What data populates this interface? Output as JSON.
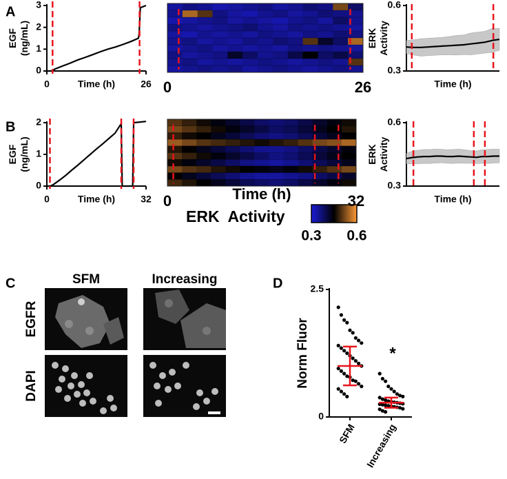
{
  "panel_labels": [
    "A",
    "B",
    "C",
    "D"
  ],
  "chart_data": [
    {
      "type": "line",
      "ylabel": [
        "EGF",
        "(ng/mL)"
      ],
      "xlabel": "Time (h)",
      "x": [
        0,
        1.5,
        2,
        4,
        6,
        8,
        10,
        12,
        14,
        16,
        18,
        20,
        22,
        24,
        24.2,
        24.5,
        26
      ],
      "values": [
        0,
        0,
        0.08,
        0.22,
        0.35,
        0.5,
        0.62,
        0.75,
        0.88,
        1.0,
        1.1,
        1.22,
        1.35,
        1.5,
        1.7,
        2.9,
        3.0
      ],
      "color": "#000000",
      "xlim": [
        0,
        26
      ],
      "ylim": [
        0,
        3
      ],
      "xticks": [
        0,
        26
      ],
      "yticks": [
        0,
        1,
        2,
        3
      ],
      "vlines": [
        1.5,
        24.3
      ],
      "vline_color": "#e8141c"
    },
    {
      "type": "heatmap",
      "xlim": [
        0,
        26
      ],
      "xticks": [
        0,
        26
      ],
      "vlines": [
        1.5,
        24.3
      ],
      "vline_color": "#e8141c",
      "rows": [
        [
          0.34,
          0.36,
          0.35,
          0.33,
          0.34,
          0.35,
          0.36,
          0.34,
          0.35,
          0.37,
          0.36,
          0.52,
          0.38
        ],
        [
          0.35,
          0.55,
          0.5,
          0.36,
          0.34,
          0.33,
          0.35,
          0.36,
          0.34,
          0.35,
          0.37,
          0.36,
          0.35
        ],
        [
          0.33,
          0.34,
          0.35,
          0.36,
          0.34,
          0.35,
          0.34,
          0.33,
          0.35,
          0.36,
          0.34,
          0.38,
          0.35
        ],
        [
          0.36,
          0.35,
          0.34,
          0.35,
          0.36,
          0.37,
          0.35,
          0.34,
          0.36,
          0.35,
          0.36,
          0.35,
          0.34
        ],
        [
          0.34,
          0.33,
          0.35,
          0.34,
          0.35,
          0.34,
          0.36,
          0.35,
          0.34,
          0.36,
          0.35,
          0.37,
          0.36
        ],
        [
          0.35,
          0.36,
          0.34,
          0.35,
          0.34,
          0.36,
          0.35,
          0.37,
          0.36,
          0.5,
          0.42,
          0.38,
          0.55
        ],
        [
          0.34,
          0.35,
          0.36,
          0.34,
          0.35,
          0.34,
          0.35,
          0.34,
          0.36,
          0.35,
          0.36,
          0.35,
          0.34
        ],
        [
          0.36,
          0.34,
          0.35,
          0.36,
          0.42,
          0.38,
          0.35,
          0.36,
          0.4,
          0.45,
          0.38,
          0.4,
          0.37
        ],
        [
          0.35,
          0.36,
          0.34,
          0.35,
          0.34,
          0.35,
          0.36,
          0.35,
          0.34,
          0.35,
          0.36,
          0.35,
          0.5
        ],
        [
          0.34,
          0.35,
          0.36,
          0.35,
          0.36,
          0.34,
          0.35,
          0.36,
          0.35,
          0.34,
          0.35,
          0.36,
          0.35
        ]
      ]
    },
    {
      "type": "band",
      "ylabel": [
        "ERK",
        "Activity"
      ],
      "xlabel": "Time (h)",
      "x": [
        0,
        2,
        4,
        6,
        8,
        10,
        12,
        14,
        16,
        18,
        20,
        22,
        24,
        26
      ],
      "values": [
        0.41,
        0.408,
        0.408,
        0.41,
        0.412,
        0.414,
        0.416,
        0.418,
        0.42,
        0.424,
        0.428,
        0.432,
        0.44,
        0.445
      ],
      "errors": [
        0.03,
        0.035,
        0.04,
        0.04,
        0.04,
        0.04,
        0.042,
        0.045,
        0.045,
        0.05,
        0.05,
        0.05,
        0.055,
        0.05
      ],
      "color": "#000000",
      "band_color": "#c8c8c8",
      "xlim": [
        0,
        26
      ],
      "ylim": [
        0.3,
        0.6
      ],
      "yticks": [
        0.3,
        0.6
      ],
      "vlines": [
        1.5,
        24.3
      ],
      "vline_color": "#e8141c"
    },
    {
      "type": "line",
      "ylabel": [
        "EGF",
        "(ng/mL)"
      ],
      "xlabel": "Time (h)",
      "x": [
        0,
        1,
        2,
        4,
        6,
        8,
        10,
        12,
        14,
        16,
        18,
        20,
        22,
        24,
        24.3,
        27.7,
        28,
        30,
        32
      ],
      "values": [
        0,
        0,
        0.04,
        0.18,
        0.33,
        0.5,
        0.66,
        0.83,
        1.0,
        1.17,
        1.33,
        1.5,
        1.67,
        1.97,
        0,
        0,
        2.0,
        2.02,
        2.04
      ],
      "color": "#000000",
      "xlim": [
        0,
        32
      ],
      "ylim": [
        0,
        2
      ],
      "xticks": [
        0,
        32
      ],
      "yticks": [
        0,
        1,
        2
      ],
      "vlines": [
        1,
        24,
        28
      ],
      "vline_color": "#e8141c"
    },
    {
      "type": "heatmap",
      "xlabel": "Time (h)",
      "xlim": [
        0,
        32
      ],
      "xticks": [
        0,
        32
      ],
      "vlines": [
        1,
        25,
        29
      ],
      "vline_color": "#e8141c",
      "rows": [
        [
          0.5,
          0.48,
          0.46,
          0.44,
          0.42,
          0.4,
          0.38,
          0.37,
          0.38,
          0.4,
          0.42,
          0.44,
          0.46
        ],
        [
          0.52,
          0.5,
          0.48,
          0.46,
          0.44,
          0.42,
          0.4,
          0.38,
          0.39,
          0.41,
          0.43,
          0.45,
          0.47
        ],
        [
          0.48,
          0.46,
          0.45,
          0.43,
          0.41,
          0.39,
          0.37,
          0.36,
          0.37,
          0.39,
          0.41,
          0.43,
          0.45
        ],
        [
          0.54,
          0.52,
          0.5,
          0.49,
          0.48,
          0.47,
          0.46,
          0.47,
          0.48,
          0.5,
          0.52,
          0.53,
          0.55
        ],
        [
          0.47,
          0.45,
          0.43,
          0.41,
          0.39,
          0.37,
          0.35,
          0.35,
          0.36,
          0.38,
          0.4,
          0.42,
          0.44
        ],
        [
          0.5,
          0.48,
          0.46,
          0.44,
          0.42,
          0.4,
          0.38,
          0.36,
          0.37,
          0.39,
          0.41,
          0.43,
          0.45
        ],
        [
          0.46,
          0.44,
          0.42,
          0.4,
          0.38,
          0.36,
          0.35,
          0.34,
          0.35,
          0.37,
          0.39,
          0.41,
          0.43
        ],
        [
          0.52,
          0.5,
          0.49,
          0.47,
          0.46,
          0.45,
          0.44,
          0.43,
          0.44,
          0.46,
          0.48,
          0.5,
          0.52
        ],
        [
          0.45,
          0.43,
          0.41,
          0.39,
          0.37,
          0.35,
          0.34,
          0.34,
          0.35,
          0.36,
          0.38,
          0.4,
          0.42
        ],
        [
          0.49,
          0.47,
          0.45,
          0.43,
          0.41,
          0.39,
          0.38,
          0.37,
          0.38,
          0.4,
          0.42,
          0.44,
          0.46
        ]
      ]
    },
    {
      "type": "band",
      "ylabel": [
        "ERK",
        "Activity"
      ],
      "xlabel": "Time (h)",
      "x": [
        0,
        2,
        4,
        6,
        8,
        10,
        12,
        14,
        16,
        18,
        20,
        22,
        24,
        26,
        28,
        30,
        32
      ],
      "values": [
        0.43,
        0.435,
        0.438,
        0.44,
        0.44,
        0.442,
        0.442,
        0.44,
        0.44,
        0.442,
        0.44,
        0.438,
        0.436,
        0.44,
        0.44,
        0.442,
        0.442
      ],
      "errors": [
        0.025,
        0.03,
        0.032,
        0.033,
        0.033,
        0.033,
        0.032,
        0.032,
        0.033,
        0.033,
        0.032,
        0.03,
        0.03,
        0.032,
        0.033,
        0.033,
        0.032
      ],
      "color": "#000000",
      "band_color": "#c8c8c8",
      "xlim": [
        0,
        32
      ],
      "ylim": [
        0.3,
        0.6
      ],
      "yticks": [
        0.3,
        0.6
      ],
      "vlines": [
        2.4,
        23.2,
        27
      ],
      "vline_color": "#e8141c"
    },
    {
      "type": "dot",
      "ylabel": "Norm Fluor",
      "categories": [
        "SFM",
        "Increasing"
      ],
      "points": [
        [
          2.15,
          2.0,
          1.9,
          1.85,
          1.7,
          1.65,
          1.55,
          1.5,
          1.45,
          1.4,
          1.35,
          1.3,
          1.25,
          1.2,
          1.15,
          1.1,
          1.05,
          1.0,
          0.95,
          0.9,
          0.85,
          0.8,
          0.78,
          0.72,
          0.7,
          0.65,
          0.6,
          0.55,
          0.5,
          0.45,
          0.4
        ],
        [
          0.85,
          0.75,
          0.7,
          0.6,
          0.55,
          0.5,
          0.45,
          0.42,
          0.4,
          0.38,
          0.35,
          0.33,
          0.31,
          0.3,
          0.29,
          0.28,
          0.27,
          0.26,
          0.25,
          0.24,
          0.23,
          0.22,
          0.21,
          0.2,
          0.19,
          0.18,
          0.16,
          0.15,
          0.12,
          0.1
        ]
      ],
      "means": [
        1.0,
        0.28
      ],
      "errors": [
        0.38,
        0.1
      ],
      "color": "#000000",
      "stat_color": "#e8141c",
      "ylim": [
        0,
        2.5
      ],
      "yticks": [
        0,
        2.5
      ],
      "annotation": "*"
    }
  ],
  "colorbar": {
    "label": "ERK  Activity",
    "lim": [
      0.3,
      0.6
    ],
    "ticks": [
      0.3,
      0.6
    ],
    "colors": [
      "#1c1cd8",
      "#000000",
      "#ff9a36"
    ]
  },
  "micrographs": {
    "columns": [
      "SFM",
      "Increasing"
    ],
    "rows": [
      "EGFR",
      "DAPI"
    ]
  }
}
